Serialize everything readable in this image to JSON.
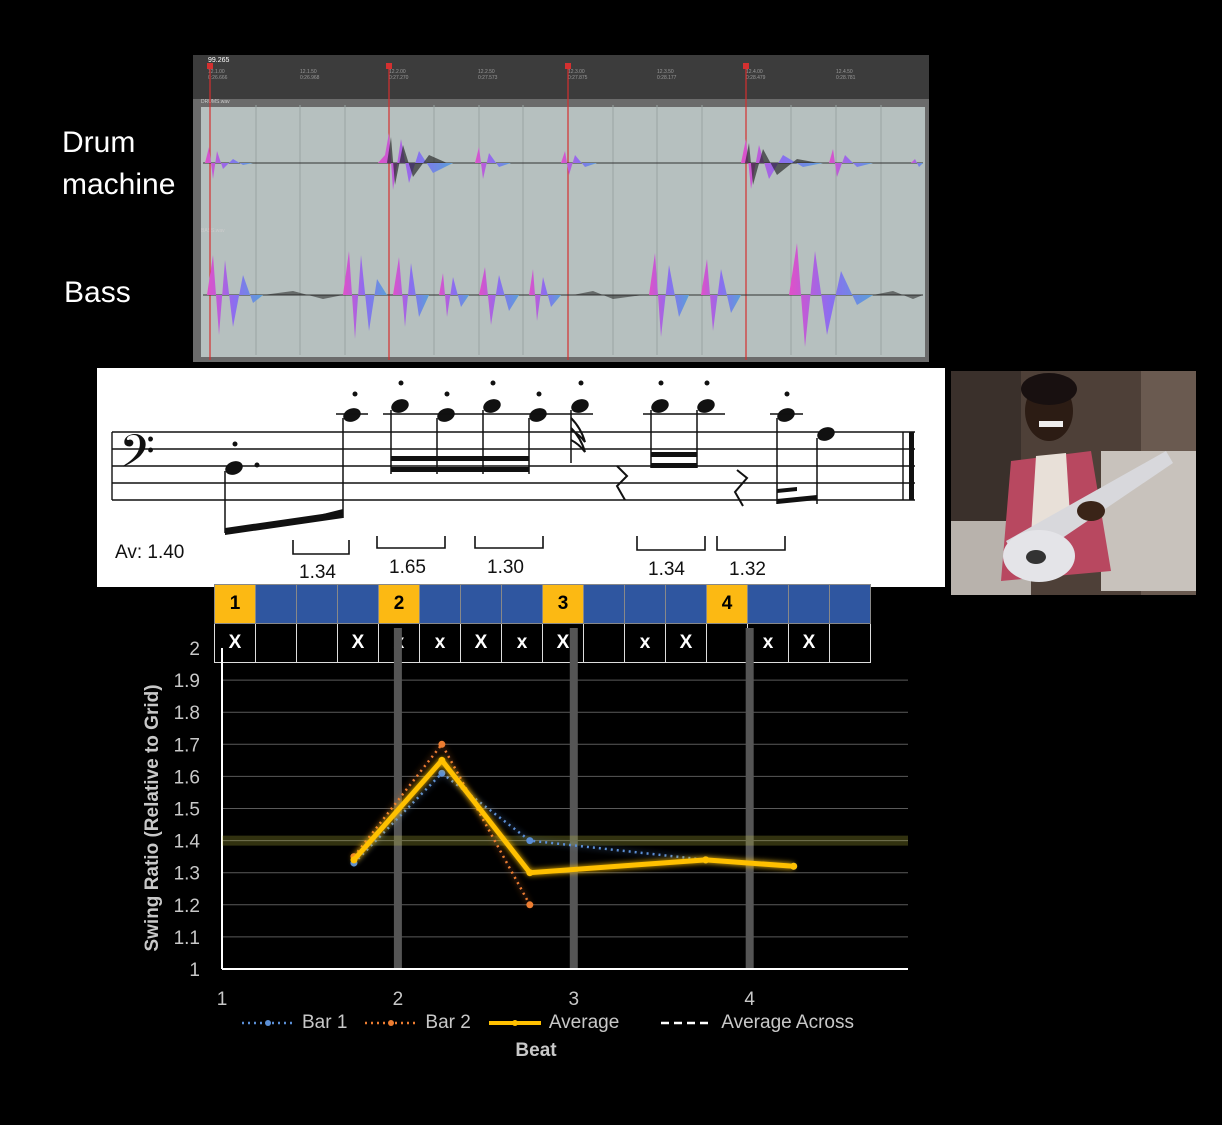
{
  "labels": {
    "drum": "Drum\nmachine",
    "bass": "Bass"
  },
  "daw": {
    "bar_numbers": [
      "1",
      "2",
      "3",
      "4"
    ],
    "tempo": "99.265",
    "tick_labels": [
      "12.1.00",
      "12.1.50",
      "12.2.00",
      "12.2.50",
      "12.3.00",
      "12.3.50",
      "12.4.00",
      "12.4.50"
    ],
    "tick_times": [
      "0:26.666",
      "0:26.968",
      "0:27.270",
      "0:27.573",
      "0:27.875",
      "0:28.177",
      "0:28.479",
      "0:28.781"
    ],
    "tracks": [
      "DRUMS.wav",
      "BASS.wav"
    ]
  },
  "sheet": {
    "average": "Av: 1.40",
    "brackets": [
      "1.34",
      "1.65",
      "1.30",
      "1.34",
      "1.32"
    ]
  },
  "beat_grid": {
    "beats": [
      "1",
      "",
      "",
      "",
      "2",
      "",
      "",
      "",
      "3",
      "",
      "",
      "",
      "4",
      "",
      "",
      ""
    ],
    "hits": [
      "X",
      "",
      "",
      "X",
      "x",
      "x",
      "X",
      "x",
      "X",
      "",
      "x",
      "X",
      "",
      "x",
      "X",
      ""
    ]
  },
  "chart_data": {
    "type": "line",
    "xlabel": "Beat",
    "ylabel": "Swing Ratio (Relative to Grid)",
    "xlim": [
      1,
      4.9
    ],
    "ylim": [
      1,
      2
    ],
    "x_ticks": [
      1,
      2,
      3,
      4
    ],
    "y_ticks": [
      "1",
      "1.1",
      "1.2",
      "1.3",
      "1.4",
      "1.5",
      "1.6",
      "1.7",
      "1.8",
      "1.9",
      "2"
    ],
    "grid": true,
    "legend": "bottom",
    "series": [
      {
        "name": "Bar 1",
        "style": "dotted",
        "color": "#5b8fd6",
        "x": [
          1.75,
          2.25,
          2.75,
          3.75,
          4.25
        ],
        "y": [
          1.33,
          1.61,
          1.4,
          1.34,
          1.32
        ]
      },
      {
        "name": "Bar 2",
        "style": "dotted",
        "color": "#ed7d31",
        "x": [
          1.75,
          2.25,
          2.75
        ],
        "y": [
          1.35,
          1.7,
          1.2
        ]
      },
      {
        "name": "Average",
        "style": "solid",
        "color": "#ffc000",
        "x": [
          1.75,
          2.25,
          2.75,
          3.75,
          4.25
        ],
        "y": [
          1.34,
          1.65,
          1.3,
          1.34,
          1.32
        ]
      },
      {
        "name": "Average Across",
        "style": "dashed",
        "color": "#ffffff",
        "x": [
          1.0,
          4.9
        ],
        "y": [
          1.4,
          1.4
        ]
      }
    ]
  }
}
